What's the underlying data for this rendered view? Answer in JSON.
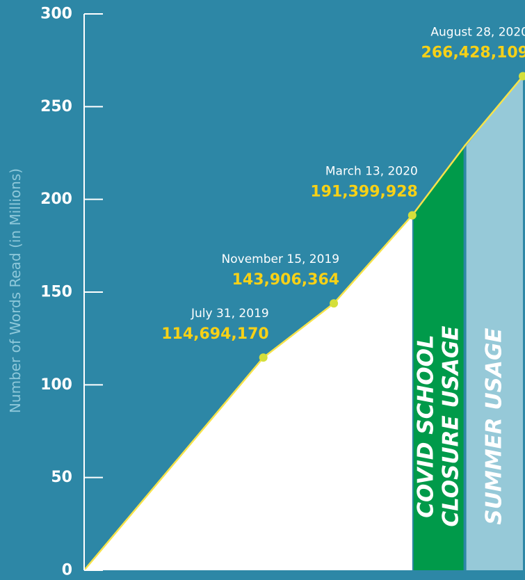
{
  "colors": {
    "background": "#2d87a6",
    "area_fill": "#ffffff",
    "line": "#f7e34a",
    "marker": "#d4df3a",
    "value_text": "#f7d117",
    "covid_band": "#009a4a",
    "summer_band": "#96c9d8",
    "axis": "#ffffff"
  },
  "chart_data": {
    "type": "area",
    "ylabel": "Number of Words Read (in Millions)",
    "ylim": [
      0,
      300
    ],
    "yticks": [
      "0",
      "50",
      "100",
      "150",
      "200",
      "250",
      "300"
    ],
    "grid": false,
    "x": [
      "2018-11-01",
      "2019-07-31",
      "2019-11-15",
      "2020-03-13",
      "2020-06-01",
      "2020-08-28"
    ],
    "series": [
      {
        "values": [
          0,
          114.69417,
          143.906364,
          191.399928,
          229,
          266.428109
        ]
      }
    ],
    "annotations": [
      {
        "x": "2019-07-31",
        "y": 114.69417,
        "date": "July 31, 2019",
        "value": "114,694,170"
      },
      {
        "x": "2019-11-15",
        "y": 143.906364,
        "date": "November 15, 2019",
        "value": "143,906,364"
      },
      {
        "x": "2020-03-13",
        "y": 191.399928,
        "date": "March 13, 2020",
        "value": "191,399,928"
      },
      {
        "x": "2020-08-28",
        "y": 266.428109,
        "date": "August 28, 2020",
        "value": "266,428,109"
      }
    ],
    "bands": [
      {
        "from": "2020-03-13",
        "to": "2020-06-01",
        "lines": [
          "COVID SCHOOL",
          "CLOSURE USAGE"
        ],
        "color": "#009a4a"
      },
      {
        "from": "2020-06-01",
        "to": "2020-08-28",
        "lines": [
          "SUMMER USAGE"
        ],
        "color": "#96c9d8"
      }
    ]
  }
}
